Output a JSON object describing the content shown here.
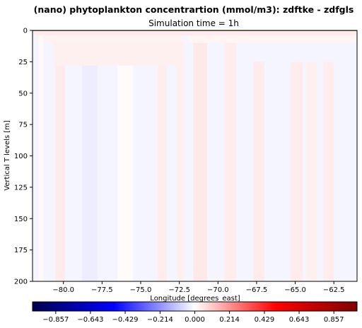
{
  "chart_data": {
    "type": "heatmap",
    "title": "(nano) phytoplankton concentrartion (mmol/m3): zdftke - zdfgls",
    "subtitle": "Simulation time = 1h",
    "xlabel": "Longitude [degrees_east]",
    "ylabel": "Vertical T levels [m]",
    "xlim": [
      -82.0,
      -61.0
    ],
    "ylim": [
      200,
      0
    ],
    "x_ticks": [
      -80.0,
      -77.5,
      -75.0,
      -72.5,
      -70.0,
      -67.5,
      -65.0,
      -62.5
    ],
    "x_tick_labels": [
      "−80.0",
      "−77.5",
      "−75.0",
      "−72.5",
      "−70.0",
      "−67.5",
      "−65.0",
      "−62.5"
    ],
    "y_ticks": [
      0,
      25,
      50,
      75,
      100,
      125,
      150,
      175,
      200
    ],
    "y_tick_labels": [
      "0",
      "25",
      "50",
      "75",
      "100",
      "125",
      "150",
      "175",
      "200"
    ],
    "colormap": "seismic",
    "color_range": [
      -1.0,
      1.0
    ],
    "colorbar_ticks": [
      -0.857,
      -0.643,
      -0.429,
      -0.214,
      0.0,
      0.214,
      0.429,
      0.643,
      0.857
    ],
    "colorbar_tick_labels": [
      "−0.857",
      "−0.643",
      "−0.429",
      "−0.214",
      "0.000",
      "0.214",
      "0.429",
      "0.643",
      "0.857"
    ],
    "base_value": -0.02,
    "cells": [
      {
        "lon": [
          -82.0,
          -61.0
        ],
        "depth": [
          0,
          1
        ],
        "value": 0.02
      },
      {
        "lon": [
          -82.0,
          -61.0
        ],
        "depth": [
          1,
          4
        ],
        "value": 0.04
      },
      {
        "lon": [
          -81.8,
          -72.2
        ],
        "depth": [
          4,
          10
        ],
        "value": 0.025
      },
      {
        "lon": [
          -80.6,
          -72.2
        ],
        "depth": [
          10,
          28
        ],
        "value": 0.03
      },
      {
        "lon": [
          -71.9,
          -61.0
        ],
        "depth": [
          4,
          10
        ],
        "value": 0.02
      },
      {
        "lon": [
          -81.6,
          -81.3
        ],
        "depth": [
          4,
          200
        ],
        "value": 0.012
      },
      {
        "lon": [
          -80.5,
          -79.9
        ],
        "depth": [
          28,
          200
        ],
        "value": 0.04
      },
      {
        "lon": [
          -73.9,
          -73.3
        ],
        "depth": [
          28,
          200
        ],
        "value": 0.035
      },
      {
        "lon": [
          -72.7,
          -72.2
        ],
        "depth": [
          10,
          200
        ],
        "value": 0.03
      },
      {
        "lon": [
          -71.6,
          -70.7
        ],
        "depth": [
          10,
          200
        ],
        "value": 0.045
      },
      {
        "lon": [
          -69.6,
          -68.8
        ],
        "depth": [
          10,
          200
        ],
        "value": 0.035
      },
      {
        "lon": [
          -67.7,
          -67.0
        ],
        "depth": [
          25,
          200
        ],
        "value": 0.04
      },
      {
        "lon": [
          -65.3,
          -64.5
        ],
        "depth": [
          25,
          200
        ],
        "value": 0.035
      },
      {
        "lon": [
          -64.3,
          -63.6
        ],
        "depth": [
          25,
          200
        ],
        "value": 0.03
      },
      {
        "lon": [
          -63.2,
          -62.5
        ],
        "depth": [
          25,
          200
        ],
        "value": 0.035
      },
      {
        "lon": [
          -76.5,
          -75.5
        ],
        "depth": [
          28,
          200
        ],
        "value": 0.008
      },
      {
        "lon": [
          -78.8,
          -77.8
        ],
        "depth": [
          28,
          200
        ],
        "value": -0.035
      }
    ]
  }
}
